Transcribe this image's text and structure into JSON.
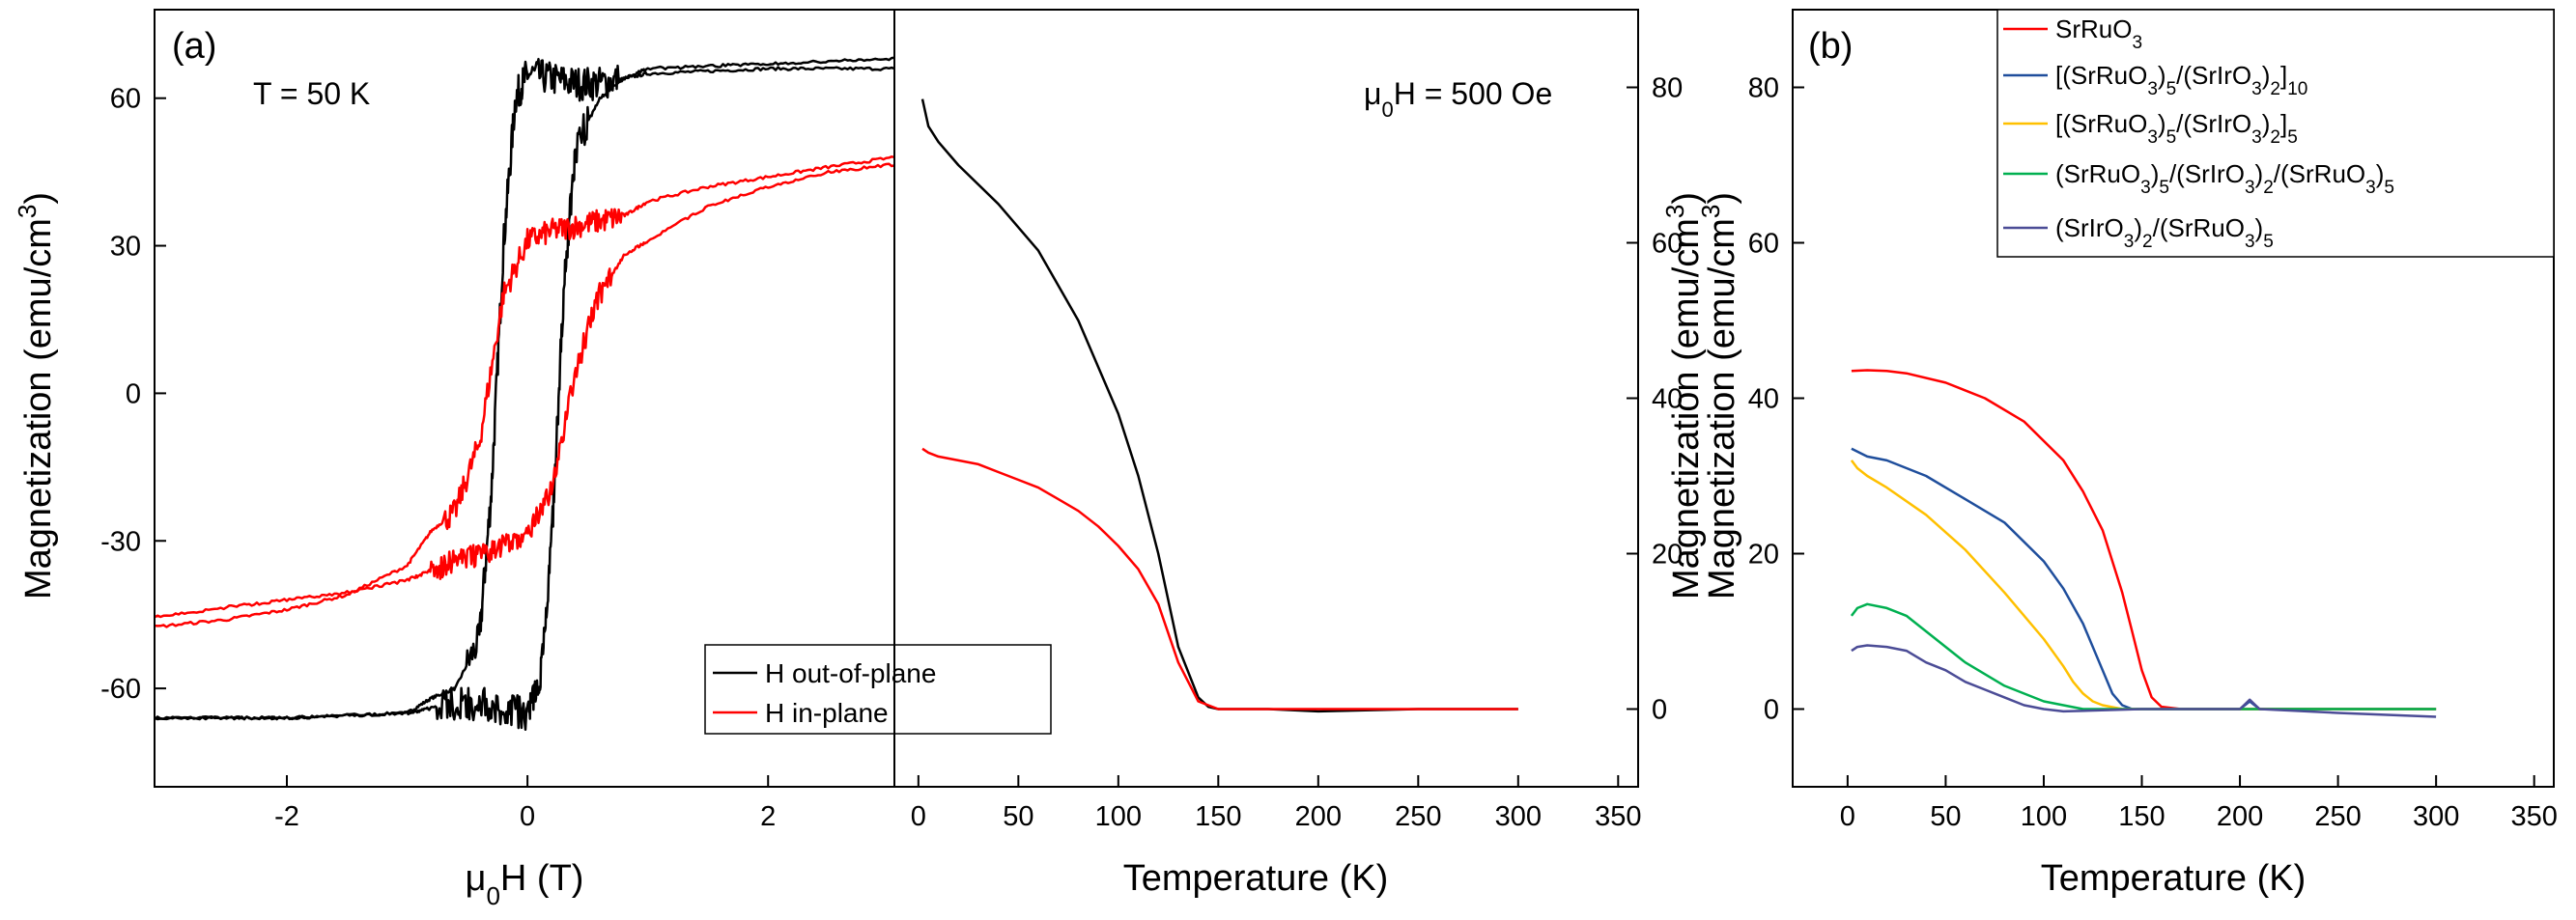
{
  "chart_data": [
    {
      "id": "a",
      "type": "line",
      "panel_label": "(a)",
      "annotation": "T = 50 K",
      "xlabel": "μ0H (T)",
      "ylabel": "Magnetization (emu/cm3)",
      "xlim": [
        -3.1,
        3.05
      ],
      "ylim": [
        -80,
        78
      ],
      "xticks": [
        {
          "v": -2,
          "label": "-2"
        },
        {
          "v": 0,
          "label": "0"
        },
        {
          "v": 2,
          "label": "2"
        }
      ],
      "yticks": [
        {
          "v": -60,
          "label": "-60"
        },
        {
          "v": -30,
          "label": "-30"
        },
        {
          "v": 0,
          "label": "0"
        },
        {
          "v": 30,
          "label": "30"
        },
        {
          "v": 60,
          "label": "60"
        }
      ],
      "legend": {
        "position": "bottom-right",
        "entries": [
          {
            "name": "H out-of-plane",
            "color": "#000000"
          },
          {
            "name": "H in-plane",
            "color": "#ff0000"
          }
        ]
      },
      "series": [
        {
          "name": "H out-of-plane",
          "color": "#000000",
          "noise": 3.5,
          "noise_region": [
            -0.5,
            0.75
          ],
          "x": [
            -3.1,
            -2.5,
            -2.0,
            -1.5,
            -1.0,
            -0.8,
            -0.6,
            -0.4,
            -0.3,
            -0.2,
            -0.1,
            0.0,
            0.2,
            0.4,
            0.6,
            0.8,
            1.0,
            1.5,
            2.0,
            2.5,
            3.05
          ],
          "y": [
            -66,
            -66,
            -66,
            -65.5,
            -65,
            -62,
            -60,
            -50,
            -20,
            30,
            60,
            65,
            64,
            63,
            63,
            64,
            65,
            65.5,
            66,
            66,
            66
          ]
        },
        {
          "name": "H out-of-plane (return)",
          "color": "#000000",
          "noise": 3.5,
          "noise_region": [
            -0.75,
            0.5
          ],
          "x": [
            3.05,
            2.5,
            2.0,
            1.5,
            1.0,
            0.8,
            0.6,
            0.4,
            0.3,
            0.2,
            0.1,
            0.0,
            -0.2,
            -0.4,
            -0.6,
            -0.8,
            -1.0,
            -1.5,
            -2.0,
            -2.5,
            -3.1
          ],
          "y": [
            68,
            67.5,
            67,
            66.5,
            66,
            64,
            60,
            50,
            20,
            -30,
            -60,
            -65,
            -64,
            -63,
            -63,
            -64,
            -65,
            -65.5,
            -66,
            -66,
            -66
          ]
        },
        {
          "name": "H in-plane",
          "color": "#ff0000",
          "noise": 2.5,
          "noise_region": [
            -0.7,
            0.8
          ],
          "x": [
            -3.1,
            -2.5,
            -2.0,
            -1.5,
            -1.0,
            -0.8,
            -0.6,
            -0.4,
            -0.2,
            0.0,
            0.2,
            0.4,
            0.6,
            0.8,
            1.0,
            1.5,
            2.0,
            2.5,
            3.05
          ],
          "y": [
            -47.5,
            -46,
            -44,
            -41,
            -35,
            -28,
            -24,
            -10,
            20,
            31,
            33,
            34,
            35,
            36,
            39,
            42,
            44,
            46,
            48
          ]
        },
        {
          "name": "H in-plane (return)",
          "color": "#ff0000",
          "noise": 2.5,
          "noise_region": [
            -0.8,
            0.7
          ],
          "x": [
            3.05,
            2.5,
            2.0,
            1.5,
            1.0,
            0.8,
            0.6,
            0.4,
            0.2,
            0.0,
            -0.2,
            -0.4,
            -0.6,
            -0.8,
            -1.0,
            -1.5,
            -2.0,
            -2.5,
            -3.1
          ],
          "y": [
            46.5,
            45,
            42,
            38,
            31,
            28,
            20,
            5,
            -20,
            -29,
            -31,
            -33,
            -34,
            -36,
            -38,
            -40.5,
            -42,
            -43.5,
            -45.5
          ]
        }
      ]
    },
    {
      "id": "a2",
      "type": "line",
      "annotation": "μ0H = 500 Oe",
      "xlabel": "Temperature (K)",
      "ylabel": "Magnetization (emu/cm3)",
      "xlim": [
        -12,
        360
      ],
      "ylim": [
        -10,
        90
      ],
      "xticks": [
        {
          "v": 0,
          "label": "0"
        },
        {
          "v": 50,
          "label": "50"
        },
        {
          "v": 100,
          "label": "100"
        },
        {
          "v": 150,
          "label": "150"
        },
        {
          "v": 200,
          "label": "200"
        },
        {
          "v": 250,
          "label": "250"
        },
        {
          "v": 300,
          "label": "300"
        },
        {
          "v": 350,
          "label": "350"
        }
      ],
      "yticks": [
        {
          "v": 0,
          "label": "0"
        },
        {
          "v": 20,
          "label": "20"
        },
        {
          "v": 40,
          "label": "40"
        },
        {
          "v": 60,
          "label": "60"
        },
        {
          "v": 80,
          "label": "80"
        }
      ],
      "series": [
        {
          "name": "H out-of-plane",
          "color": "#000000",
          "x": [
            2,
            5,
            10,
            20,
            40,
            60,
            80,
            100,
            110,
            120,
            130,
            140,
            145,
            150,
            175,
            200,
            250,
            300
          ],
          "y": [
            78.5,
            75,
            73,
            70,
            65,
            59,
            50,
            38,
            30,
            20,
            8,
            1.5,
            0.3,
            0,
            0,
            -0.3,
            0,
            0
          ]
        },
        {
          "name": "H in-plane",
          "color": "#ff0000",
          "x": [
            2,
            5,
            10,
            20,
            30,
            40,
            50,
            60,
            70,
            80,
            90,
            100,
            110,
            120,
            130,
            140,
            150,
            175,
            200,
            250,
            300
          ],
          "y": [
            33.5,
            33,
            32.5,
            32,
            31.5,
            30.5,
            29.5,
            28.5,
            27,
            25.5,
            23.5,
            21,
            18,
            13.5,
            6,
            1,
            0,
            0,
            0,
            0,
            0
          ]
        }
      ]
    },
    {
      "id": "b",
      "type": "line",
      "panel_label": "(b)",
      "xlabel": "Temperature (K)",
      "ylabel": "Magnetization (emu/cm3)",
      "xlim": [
        -28,
        360
      ],
      "ylim": [
        -10,
        90
      ],
      "xticks": [
        {
          "v": 0,
          "label": "0"
        },
        {
          "v": 50,
          "label": "50"
        },
        {
          "v": 100,
          "label": "100"
        },
        {
          "v": 150,
          "label": "150"
        },
        {
          "v": 200,
          "label": "200"
        },
        {
          "v": 250,
          "label": "250"
        },
        {
          "v": 300,
          "label": "300"
        },
        {
          "v": 350,
          "label": "350"
        }
      ],
      "yticks": [
        {
          "v": 0,
          "label": "0"
        },
        {
          "v": 20,
          "label": "20"
        },
        {
          "v": 40,
          "label": "40"
        },
        {
          "v": 60,
          "label": "60"
        },
        {
          "v": 80,
          "label": "80"
        }
      ],
      "legend": {
        "position": "top-right",
        "entries": [
          {
            "name": "SrRuO3",
            "color": "#ff0000"
          },
          {
            "name": "[(SrRuO3)5/(SrIrO3)2]10",
            "color": "#1f4e9c"
          },
          {
            "name": "[(SrRuO3)5/(SrIrO3)2]5",
            "color": "#ffc000"
          },
          {
            "name": "(SrRuO3)5/(SrIrO3)2/(SrRuO3)5",
            "color": "#00b050"
          },
          {
            "name": "(SrIrO3)2/(SrRuO3)5",
            "color": "#4b4c96"
          }
        ]
      },
      "series": [
        {
          "name": "SrRuO3",
          "color": "#ff0000",
          "x": [
            2,
            10,
            20,
            30,
            50,
            70,
            90,
            110,
            120,
            130,
            140,
            145,
            150,
            155,
            160,
            170,
            200,
            250,
            300
          ],
          "y": [
            43.5,
            43.6,
            43.5,
            43.2,
            42,
            40,
            37,
            32,
            28,
            23,
            15,
            10,
            5,
            1.5,
            0.3,
            0,
            0,
            0,
            0
          ]
        },
        {
          "name": "[(SrRuO3)5/(SrIrO3)2]10",
          "color": "#1f4e9c",
          "x": [
            2,
            10,
            20,
            40,
            60,
            80,
            100,
            110,
            120,
            130,
            135,
            140,
            145,
            150,
            200,
            205,
            210,
            250,
            300
          ],
          "y": [
            33.5,
            32.5,
            32,
            30,
            27,
            24,
            19,
            15.5,
            11,
            5,
            2,
            0.5,
            0,
            0,
            0,
            1,
            0,
            0,
            0
          ]
        },
        {
          "name": "[(SrRuO3)5/(SrIrO3)2]5",
          "color": "#ffc000",
          "x": [
            2,
            5,
            10,
            20,
            40,
            60,
            80,
            100,
            110,
            115,
            120,
            125,
            130,
            140,
            200,
            250,
            300
          ],
          "y": [
            32,
            31,
            30,
            28.5,
            25,
            20.5,
            15,
            9,
            5.5,
            3.5,
            2,
            1,
            0.5,
            0,
            0,
            0,
            0
          ]
        },
        {
          "name": "(SrRuO3)5/(SrIrO3)2/(SrRuO3)5",
          "color": "#00b050",
          "x": [
            2,
            5,
            10,
            20,
            30,
            40,
            60,
            80,
            100,
            120,
            150,
            200,
            250,
            300
          ],
          "y": [
            12,
            13,
            13.5,
            13,
            12,
            10,
            6,
            3,
            1,
            0,
            0,
            0,
            0,
            0
          ]
        },
        {
          "name": "(SrIrO3)2/(SrRuO3)5",
          "color": "#4b4c96",
          "x": [
            2,
            5,
            10,
            20,
            30,
            40,
            50,
            60,
            70,
            80,
            90,
            100,
            110,
            150,
            200,
            205,
            210,
            250,
            300
          ],
          "y": [
            7.5,
            8,
            8.2,
            8,
            7.5,
            6,
            5,
            3.5,
            2.5,
            1.5,
            0.5,
            0,
            -0.3,
            0,
            0,
            1.2,
            0,
            -0.5,
            -1
          ]
        }
      ]
    }
  ]
}
